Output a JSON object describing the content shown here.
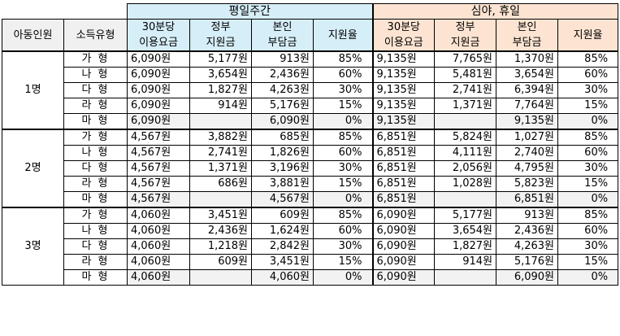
{
  "headers": {
    "group_day": "평일주간",
    "group_night": "심야, 휴일",
    "col_children": "아동인원",
    "col_income": "소득유형",
    "col_fee": [
      "30분당",
      "이용요금"
    ],
    "col_gov": [
      "정부",
      "지원금"
    ],
    "col_self": [
      "본인",
      "부담금"
    ],
    "col_rate": "지원율"
  },
  "groups": [
    {
      "count": "1명",
      "rows": [
        {
          "type": "가 형",
          "d_fee": "6,090원",
          "d_gov": "5,177원",
          "d_self": "913원",
          "d_rate": "85%",
          "n_fee": "9,135원",
          "n_gov": "7,765원",
          "n_self": "1,370원",
          "n_rate": "85%"
        },
        {
          "type": "나 형",
          "d_fee": "6,090원",
          "d_gov": "3,654원",
          "d_self": "2,436원",
          "d_rate": "60%",
          "n_fee": "9,135원",
          "n_gov": "5,481원",
          "n_self": "3,654원",
          "n_rate": "60%"
        },
        {
          "type": "다 형",
          "d_fee": "6,090원",
          "d_gov": "1,827원",
          "d_self": "4,263원",
          "d_rate": "30%",
          "n_fee": "9,135원",
          "n_gov": "2,741원",
          "n_self": "6,394원",
          "n_rate": "30%"
        },
        {
          "type": "라 형",
          "d_fee": "6,090원",
          "d_gov": "914원",
          "d_self": "5,176원",
          "d_rate": "15%",
          "n_fee": "9,135원",
          "n_gov": "1,371원",
          "n_self": "7,764원",
          "n_rate": "15%"
        },
        {
          "type": "마 형",
          "d_fee": "6,090원",
          "d_gov": "",
          "d_self": "6,090원",
          "d_rate": "0%",
          "n_fee": "9,135원",
          "n_gov": "",
          "n_self": "9,135원",
          "n_rate": "0%"
        }
      ]
    },
    {
      "count": "2명",
      "rows": [
        {
          "type": "가 형",
          "d_fee": "4,567원",
          "d_gov": "3,882원",
          "d_self": "685원",
          "d_rate": "85%",
          "n_fee": "6,851원",
          "n_gov": "5,824원",
          "n_self": "1,027원",
          "n_rate": "85%"
        },
        {
          "type": "나 형",
          "d_fee": "4,567원",
          "d_gov": "2,741원",
          "d_self": "1,826원",
          "d_rate": "60%",
          "n_fee": "6,851원",
          "n_gov": "4,111원",
          "n_self": "2,740원",
          "n_rate": "60%"
        },
        {
          "type": "다 형",
          "d_fee": "4,567원",
          "d_gov": "1,371원",
          "d_self": "3,196원",
          "d_rate": "30%",
          "n_fee": "6,851원",
          "n_gov": "2,056원",
          "n_self": "4,795원",
          "n_rate": "30%"
        },
        {
          "type": "라 형",
          "d_fee": "4,567원",
          "d_gov": "686원",
          "d_self": "3,881원",
          "d_rate": "15%",
          "n_fee": "6,851원",
          "n_gov": "1,028원",
          "n_self": "5,823원",
          "n_rate": "15%"
        },
        {
          "type": "마 형",
          "d_fee": "4,567원",
          "d_gov": "",
          "d_self": "4,567원",
          "d_rate": "0%",
          "n_fee": "6,851원",
          "n_gov": "",
          "n_self": "6,851원",
          "n_rate": "0%"
        }
      ]
    },
    {
      "count": "3명",
      "rows": [
        {
          "type": "가 형",
          "d_fee": "4,060원",
          "d_gov": "3,451원",
          "d_self": "609원",
          "d_rate": "85%",
          "n_fee": "6,090원",
          "n_gov": "5,177원",
          "n_self": "913원",
          "n_rate": "85%"
        },
        {
          "type": "나 형",
          "d_fee": "4,060원",
          "d_gov": "2,436원",
          "d_self": "1,624원",
          "d_rate": "60%",
          "n_fee": "6,090원",
          "n_gov": "3,654원",
          "n_self": "2,436원",
          "n_rate": "60%"
        },
        {
          "type": "다 형",
          "d_fee": "4,060원",
          "d_gov": "1,218원",
          "d_self": "2,842원",
          "d_rate": "30%",
          "n_fee": "6,090원",
          "n_gov": "1,827원",
          "n_self": "4,263원",
          "n_rate": "30%"
        },
        {
          "type": "라 형",
          "d_fee": "4,060원",
          "d_gov": "609원",
          "d_self": "3,451원",
          "d_rate": "15%",
          "n_fee": "6,090원",
          "n_gov": "914원",
          "n_self": "5,176원",
          "n_rate": "15%"
        },
        {
          "type": "마 형",
          "d_fee": "4,060원",
          "d_gov": "",
          "d_self": "4,060원",
          "d_rate": "0%",
          "n_fee": "6,090원",
          "n_gov": "",
          "n_self": "6,090원",
          "n_rate": "0%"
        }
      ]
    }
  ],
  "colors": {
    "day_header": "#d6eef8",
    "night_header": "#fde4d2",
    "label_gray": "#f0f0f0"
  }
}
